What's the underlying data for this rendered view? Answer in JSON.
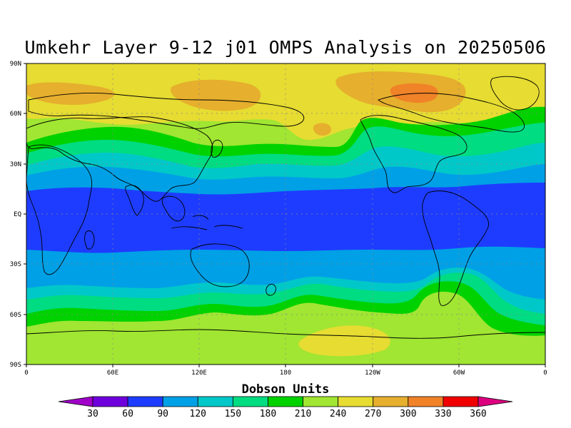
{
  "title": "Umkehr Layer 9-12 j01 OMPS Analysis on 20250506",
  "lat_ticks": [
    "90N",
    "60N",
    "30N",
    "EQ",
    "30S",
    "60S",
    "90S"
  ],
  "lon_ticks": [
    "0",
    "60E",
    "120E",
    "180",
    "120W",
    "60W",
    "0"
  ],
  "colorbar": {
    "title": "Dobson Units",
    "labels": [
      "30",
      "60",
      "90",
      "120",
      "150",
      "180",
      "210",
      "240",
      "270",
      "300",
      "330",
      "360"
    ],
    "colors": [
      "#a000c8",
      "#6e00dc",
      "#1e3cff",
      "#00a0e6",
      "#00c8c8",
      "#00dc82",
      "#00d200",
      "#a0e632",
      "#e6dc32",
      "#e6af2d",
      "#f08228",
      "#f00000",
      "#dc0080"
    ]
  },
  "bands": [
    {
      "level": "240",
      "color": "#a0e632"
    },
    {
      "level": "270",
      "color": "#e6dc32"
    },
    {
      "level": "300",
      "color": "#e6af2d"
    },
    {
      "level": "330",
      "color": "#f08228"
    },
    {
      "level": "210",
      "color": "#00d200"
    },
    {
      "level": "180",
      "color": "#00dc82"
    },
    {
      "level": "150",
      "color": "#00c8c8"
    },
    {
      "level": "120",
      "color": "#00a0e6"
    },
    {
      "level": "90",
      "color": "#1e3cff"
    }
  ]
}
